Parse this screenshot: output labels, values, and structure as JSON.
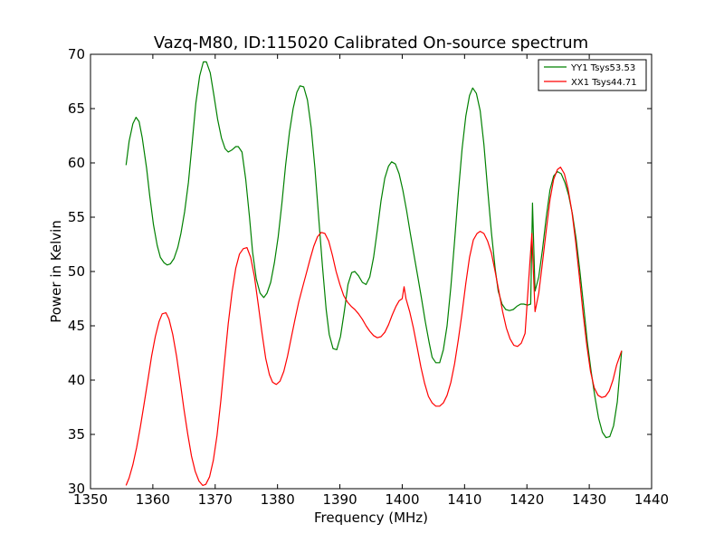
{
  "chart_data": {
    "type": "line",
    "title": "Vazq-M80, ID:115020 Calibrated On-source spectrum",
    "xlabel": "Frequency (MHz)",
    "ylabel": "Power in Kelvin",
    "xlim": [
      1350,
      1440
    ],
    "ylim": [
      30,
      70
    ],
    "xticks": [
      1350,
      1360,
      1370,
      1380,
      1390,
      1400,
      1410,
      1420,
      1430,
      1440
    ],
    "yticks": [
      30,
      35,
      40,
      45,
      50,
      55,
      60,
      65,
      70
    ],
    "grid": false,
    "legend_position": "top-right",
    "series": [
      {
        "name": "YY1 Tsys53.53",
        "color": "#008000",
        "points": [
          [
            1355.7,
            59.8
          ],
          [
            1356.2,
            62.0
          ],
          [
            1356.8,
            63.6
          ],
          [
            1357.3,
            64.2
          ],
          [
            1357.8,
            63.8
          ],
          [
            1358.3,
            62.3
          ],
          [
            1359.0,
            59.5
          ],
          [
            1359.5,
            57.0
          ],
          [
            1360.1,
            54.3
          ],
          [
            1360.7,
            52.4
          ],
          [
            1361.2,
            51.3
          ],
          [
            1361.8,
            50.8
          ],
          [
            1362.3,
            50.6
          ],
          [
            1362.8,
            50.7
          ],
          [
            1363.4,
            51.2
          ],
          [
            1364.0,
            52.2
          ],
          [
            1364.5,
            53.5
          ],
          [
            1365.1,
            55.5
          ],
          [
            1365.7,
            58.2
          ],
          [
            1366.3,
            61.8
          ],
          [
            1366.9,
            65.5
          ],
          [
            1367.5,
            68.0
          ],
          [
            1368.1,
            69.3
          ],
          [
            1368.6,
            69.3
          ],
          [
            1369.2,
            68.3
          ],
          [
            1369.8,
            66.2
          ],
          [
            1370.4,
            64.0
          ],
          [
            1371.0,
            62.3
          ],
          [
            1371.6,
            61.3
          ],
          [
            1372.1,
            61.0
          ],
          [
            1372.7,
            61.2
          ],
          [
            1373.3,
            61.5
          ],
          [
            1373.7,
            61.5
          ],
          [
            1374.3,
            61.0
          ],
          [
            1374.9,
            58.5
          ],
          [
            1375.5,
            55.0
          ],
          [
            1376.0,
            51.8
          ],
          [
            1376.6,
            49.3
          ],
          [
            1377.2,
            48.0
          ],
          [
            1377.8,
            47.6
          ],
          [
            1378.3,
            48.0
          ],
          [
            1378.9,
            49.0
          ],
          [
            1379.5,
            50.8
          ],
          [
            1380.1,
            53.2
          ],
          [
            1380.7,
            56.3
          ],
          [
            1381.3,
            59.8
          ],
          [
            1381.9,
            62.8
          ],
          [
            1382.5,
            65.0
          ],
          [
            1383.1,
            66.5
          ],
          [
            1383.6,
            67.1
          ],
          [
            1384.2,
            67.0
          ],
          [
            1384.8,
            65.8
          ],
          [
            1385.4,
            63.2
          ],
          [
            1386.0,
            59.5
          ],
          [
            1386.6,
            55.0
          ],
          [
            1387.2,
            50.5
          ],
          [
            1387.8,
            46.5
          ],
          [
            1388.3,
            44.2
          ],
          [
            1388.9,
            42.9
          ],
          [
            1389.5,
            42.8
          ],
          [
            1390.1,
            44.0
          ],
          [
            1390.7,
            46.3
          ],
          [
            1391.3,
            48.8
          ],
          [
            1391.9,
            49.9
          ],
          [
            1392.4,
            50.0
          ],
          [
            1393.0,
            49.6
          ],
          [
            1393.6,
            49.0
          ],
          [
            1394.2,
            48.8
          ],
          [
            1394.8,
            49.5
          ],
          [
            1395.4,
            51.3
          ],
          [
            1396.0,
            53.8
          ],
          [
            1396.6,
            56.5
          ],
          [
            1397.2,
            58.6
          ],
          [
            1397.8,
            59.7
          ],
          [
            1398.3,
            60.1
          ],
          [
            1398.9,
            59.9
          ],
          [
            1399.5,
            59.0
          ],
          [
            1400.1,
            57.5
          ],
          [
            1400.7,
            55.6
          ],
          [
            1401.3,
            53.5
          ],
          [
            1401.9,
            51.5
          ],
          [
            1402.5,
            49.5
          ],
          [
            1403.1,
            47.5
          ],
          [
            1403.7,
            45.4
          ],
          [
            1404.3,
            43.5
          ],
          [
            1404.8,
            42.1
          ],
          [
            1405.4,
            41.6
          ],
          [
            1406.0,
            41.6
          ],
          [
            1406.6,
            42.8
          ],
          [
            1407.2,
            45.0
          ],
          [
            1407.8,
            48.6
          ],
          [
            1408.4,
            52.8
          ],
          [
            1409.0,
            57.2
          ],
          [
            1409.6,
            61.3
          ],
          [
            1410.2,
            64.3
          ],
          [
            1410.8,
            66.2
          ],
          [
            1411.3,
            66.9
          ],
          [
            1411.9,
            66.4
          ],
          [
            1412.5,
            64.8
          ],
          [
            1413.1,
            61.7
          ],
          [
            1413.7,
            57.6
          ],
          [
            1414.3,
            53.6
          ],
          [
            1414.9,
            50.3
          ],
          [
            1415.4,
            48.2
          ],
          [
            1416.0,
            47.0
          ],
          [
            1416.6,
            46.5
          ],
          [
            1417.2,
            46.4
          ],
          [
            1417.8,
            46.5
          ],
          [
            1418.4,
            46.8
          ],
          [
            1419.0,
            47.0
          ],
          [
            1419.5,
            47.0
          ],
          [
            1420.1,
            46.9
          ],
          [
            1420.6,
            47.0
          ],
          [
            1420.9,
            56.3
          ],
          [
            1421.3,
            48.2
          ],
          [
            1421.9,
            49.5
          ],
          [
            1422.5,
            52.0
          ],
          [
            1423.1,
            55.0
          ],
          [
            1423.7,
            57.5
          ],
          [
            1424.3,
            58.8
          ],
          [
            1424.9,
            59.2
          ],
          [
            1425.5,
            59.0
          ],
          [
            1426.1,
            58.2
          ],
          [
            1426.7,
            57.0
          ],
          [
            1427.3,
            55.3
          ],
          [
            1427.9,
            53.0
          ],
          [
            1428.5,
            50.0
          ],
          [
            1429.1,
            46.8
          ],
          [
            1429.7,
            43.5
          ],
          [
            1430.3,
            40.8
          ],
          [
            1430.9,
            38.5
          ],
          [
            1431.5,
            36.5
          ],
          [
            1432.1,
            35.2
          ],
          [
            1432.7,
            34.7
          ],
          [
            1433.3,
            34.8
          ],
          [
            1433.9,
            35.8
          ],
          [
            1434.5,
            38.0
          ],
          [
            1435.2,
            42.7
          ]
        ]
      },
      {
        "name": "XX1 Tsys44.71",
        "color": "#ff0000",
        "points": [
          [
            1355.7,
            30.3
          ],
          [
            1356.2,
            31.0
          ],
          [
            1356.8,
            32.2
          ],
          [
            1357.4,
            33.8
          ],
          [
            1358.0,
            35.7
          ],
          [
            1358.6,
            37.8
          ],
          [
            1359.2,
            40.0
          ],
          [
            1359.8,
            42.2
          ],
          [
            1360.4,
            44.0
          ],
          [
            1361.0,
            45.4
          ],
          [
            1361.5,
            46.1
          ],
          [
            1362.1,
            46.2
          ],
          [
            1362.6,
            45.6
          ],
          [
            1363.2,
            44.2
          ],
          [
            1363.8,
            42.2
          ],
          [
            1364.4,
            39.8
          ],
          [
            1365.0,
            37.3
          ],
          [
            1365.6,
            35.0
          ],
          [
            1366.2,
            33.0
          ],
          [
            1366.8,
            31.6
          ],
          [
            1367.4,
            30.7
          ],
          [
            1368.0,
            30.3
          ],
          [
            1368.5,
            30.4
          ],
          [
            1369.1,
            31.1
          ],
          [
            1369.7,
            32.6
          ],
          [
            1370.3,
            34.9
          ],
          [
            1370.9,
            38.1
          ],
          [
            1371.5,
            41.7
          ],
          [
            1372.1,
            45.2
          ],
          [
            1372.7,
            48.1
          ],
          [
            1373.3,
            50.3
          ],
          [
            1373.9,
            51.6
          ],
          [
            1374.5,
            52.1
          ],
          [
            1375.1,
            52.2
          ],
          [
            1375.7,
            51.3
          ],
          [
            1376.3,
            49.5
          ],
          [
            1376.9,
            47.0
          ],
          [
            1377.5,
            44.4
          ],
          [
            1378.1,
            42.0
          ],
          [
            1378.7,
            40.5
          ],
          [
            1379.2,
            39.8
          ],
          [
            1379.8,
            39.6
          ],
          [
            1380.4,
            39.9
          ],
          [
            1381.0,
            40.8
          ],
          [
            1381.6,
            42.2
          ],
          [
            1382.2,
            43.9
          ],
          [
            1382.8,
            45.6
          ],
          [
            1383.4,
            47.2
          ],
          [
            1384.0,
            48.5
          ],
          [
            1384.6,
            49.8
          ],
          [
            1385.2,
            51.1
          ],
          [
            1385.8,
            52.3
          ],
          [
            1386.4,
            53.2
          ],
          [
            1387.0,
            53.6
          ],
          [
            1387.6,
            53.5
          ],
          [
            1388.2,
            52.8
          ],
          [
            1388.8,
            51.5
          ],
          [
            1389.4,
            50.0
          ],
          [
            1390.0,
            48.8
          ],
          [
            1390.6,
            47.8
          ],
          [
            1391.2,
            47.2
          ],
          [
            1391.8,
            46.8
          ],
          [
            1392.4,
            46.5
          ],
          [
            1393.0,
            46.1
          ],
          [
            1393.6,
            45.6
          ],
          [
            1394.2,
            45.0
          ],
          [
            1394.8,
            44.5
          ],
          [
            1395.4,
            44.1
          ],
          [
            1396.0,
            43.9
          ],
          [
            1396.6,
            44.0
          ],
          [
            1397.2,
            44.4
          ],
          [
            1397.8,
            45.1
          ],
          [
            1398.4,
            46.0
          ],
          [
            1399.0,
            46.8
          ],
          [
            1399.5,
            47.3
          ],
          [
            1400.0,
            47.5
          ],
          [
            1400.3,
            48.6
          ],
          [
            1400.6,
            47.5
          ],
          [
            1401.2,
            46.3
          ],
          [
            1401.8,
            44.8
          ],
          [
            1402.4,
            43.0
          ],
          [
            1403.0,
            41.2
          ],
          [
            1403.6,
            39.7
          ],
          [
            1404.2,
            38.5
          ],
          [
            1404.8,
            37.9
          ],
          [
            1405.4,
            37.6
          ],
          [
            1406.0,
            37.6
          ],
          [
            1406.6,
            37.9
          ],
          [
            1407.2,
            38.6
          ],
          [
            1407.8,
            39.8
          ],
          [
            1408.4,
            41.5
          ],
          [
            1409.0,
            43.7
          ],
          [
            1409.6,
            46.2
          ],
          [
            1410.2,
            48.9
          ],
          [
            1410.8,
            51.3
          ],
          [
            1411.4,
            52.9
          ],
          [
            1412.0,
            53.5
          ],
          [
            1412.5,
            53.7
          ],
          [
            1413.1,
            53.5
          ],
          [
            1413.7,
            52.8
          ],
          [
            1414.3,
            51.7
          ],
          [
            1414.9,
            50.0
          ],
          [
            1415.5,
            48.2
          ],
          [
            1416.1,
            46.3
          ],
          [
            1416.7,
            44.8
          ],
          [
            1417.3,
            43.8
          ],
          [
            1417.9,
            43.2
          ],
          [
            1418.5,
            43.1
          ],
          [
            1419.1,
            43.4
          ],
          [
            1419.7,
            44.3
          ],
          [
            1420.8,
            53.5
          ],
          [
            1421.3,
            46.3
          ],
          [
            1421.9,
            48.0
          ],
          [
            1422.5,
            50.8
          ],
          [
            1423.1,
            53.8
          ],
          [
            1423.7,
            56.6
          ],
          [
            1424.3,
            58.5
          ],
          [
            1424.9,
            59.4
          ],
          [
            1425.4,
            59.6
          ],
          [
            1426.0,
            59.0
          ],
          [
            1426.6,
            57.6
          ],
          [
            1427.2,
            55.6
          ],
          [
            1427.8,
            52.8
          ],
          [
            1428.4,
            49.6
          ],
          [
            1429.0,
            46.2
          ],
          [
            1429.6,
            43.2
          ],
          [
            1430.2,
            40.8
          ],
          [
            1430.8,
            39.3
          ],
          [
            1431.4,
            38.6
          ],
          [
            1432.0,
            38.4
          ],
          [
            1432.6,
            38.5
          ],
          [
            1433.2,
            39.0
          ],
          [
            1433.8,
            40.0
          ],
          [
            1434.4,
            41.4
          ],
          [
            1435.2,
            42.7
          ]
        ]
      }
    ]
  }
}
